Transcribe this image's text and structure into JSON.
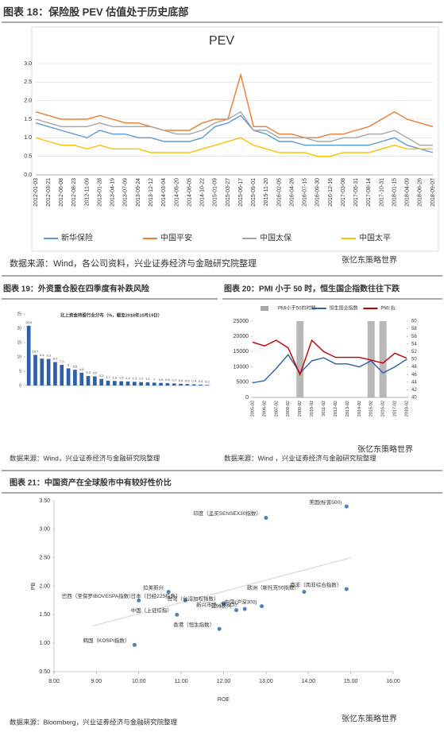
{
  "chart_data": [
    {
      "type": "line",
      "title": "图表 18：保险股 PEV 估值处于历史底部",
      "subtitle": "PEV",
      "categories": [
        "2012-01-03",
        "2012-03-21",
        "2012-06-08",
        "2012-08-23",
        "2012-11-09",
        "2013-01-28",
        "2013-04-19",
        "2013-07-09",
        "2013-09-24",
        "2013-12-12",
        "2014-03-04",
        "2014-05-20",
        "2014-08-05",
        "2014-10-22",
        "2015-01-09",
        "2015-03-27",
        "2015-06-17",
        "2015-09-01",
        "2015-11-20",
        "2016-02-05",
        "2016-04-26",
        "2016-07-15",
        "2016-09-30",
        "2016-12-16",
        "2017-03-08",
        "2017-05-31",
        "2017-08-14",
        "2017-10-31",
        "2018-01-15",
        "2018-04-09",
        "2018-06-26",
        "2018-09-07"
      ],
      "series": [
        {
          "name": "新华保险",
          "color": "#5b9bd5",
          "values": [
            1.4,
            1.3,
            1.2,
            1.1,
            1.0,
            1.2,
            1.1,
            1.1,
            1.0,
            1.0,
            0.9,
            0.9,
            0.9,
            1.0,
            1.3,
            1.4,
            1.6,
            1.2,
            1.1,
            0.9,
            0.9,
            0.8,
            0.8,
            0.8,
            0.8,
            0.8,
            0.8,
            0.9,
            1.0,
            0.8,
            0.7,
            0.6
          ]
        },
        {
          "name": "中国平安",
          "color": "#ed7d31",
          "values": [
            1.7,
            1.6,
            1.5,
            1.5,
            1.5,
            1.6,
            1.5,
            1.4,
            1.4,
            1.3,
            1.2,
            1.2,
            1.2,
            1.4,
            1.5,
            1.5,
            2.7,
            1.3,
            1.3,
            1.1,
            1.1,
            1.0,
            1.0,
            1.1,
            1.1,
            1.2,
            1.3,
            1.5,
            1.7,
            1.5,
            1.4,
            1.3
          ]
        },
        {
          "name": "中国太保",
          "color": "#a5a5a5",
          "values": [
            1.5,
            1.4,
            1.3,
            1.3,
            1.3,
            1.4,
            1.3,
            1.3,
            1.3,
            1.3,
            1.2,
            1.1,
            1.1,
            1.2,
            1.4,
            1.5,
            1.7,
            1.2,
            1.2,
            1.0,
            1.0,
            1.0,
            0.9,
            0.9,
            1.0,
            1.0,
            1.1,
            1.1,
            1.2,
            1.0,
            0.8,
            0.8
          ]
        },
        {
          "name": "中国太平",
          "color": "#ffc000",
          "values": [
            1.0,
            0.9,
            0.8,
            0.8,
            0.7,
            0.8,
            0.7,
            0.7,
            0.7,
            0.6,
            0.6,
            0.6,
            0.6,
            0.7,
            0.8,
            0.9,
            1.0,
            0.8,
            0.7,
            0.6,
            0.6,
            0.6,
            0.5,
            0.5,
            0.6,
            0.6,
            0.6,
            0.7,
            0.8,
            0.7,
            0.7,
            0.7
          ]
        }
      ],
      "ylim": [
        0,
        3
      ],
      "yticks": [
        {
          "value": 0,
          "label": "0.0"
        },
        0.5,
        {
          "value": 1,
          "label": "1.0"
        },
        1.5,
        {
          "value": 2,
          "label": "2.0"
        },
        2.5,
        {
          "value": 3,
          "label": "3.0"
        }
      ],
      "grid": true,
      "source": "数据来源：Wind，各公司资料，兴业证券经济与金融研究院整理",
      "watermark": "张忆东策略世界"
    },
    {
      "type": "bar",
      "title": "图表 19：外资重仓股在四季度有补跌风险",
      "subtitle": "北上资金持股行业分布（%，截至2018年10月19日）",
      "categories": [
        null,
        null,
        null,
        null,
        null,
        null,
        null,
        null,
        null,
        null,
        null,
        null,
        null,
        null,
        null,
        null,
        null,
        null,
        null,
        null,
        null,
        null,
        null,
        null,
        null,
        null,
        null,
        null
      ],
      "values": [
        20.9,
        10.7,
        9.4,
        9.3,
        8.2,
        7.2,
        6.0,
        5.5,
        4.5,
        3.3,
        3.2,
        2.3,
        1.7,
        1.6,
        1.5,
        1.4,
        1.3,
        1.2,
        1.1,
        1.0,
        0.9,
        0.8,
        0.7,
        0.6,
        0.5,
        0.4,
        0.3,
        0.2
      ],
      "color": "#2e5fa8",
      "ylim": [
        0,
        25
      ],
      "yticks": [
        0,
        5,
        10,
        15,
        20,
        25
      ],
      "grid": false,
      "source": "数据来源：Wind，兴业证券经济与金融研究院整理"
    },
    {
      "type": "line",
      "title": "图表 20：PMI 小于 50 时，恒生国企指数往往下跌",
      "categories": [
        "2005-02",
        "2006-02",
        "2007-02",
        "2008-02",
        "2009-02",
        "2010-02",
        "2011-02",
        "2012-02",
        "2013-02",
        "2014-02",
        "2015-02",
        "2016-02",
        "2017-02",
        "2018-02"
      ],
      "series": [
        {
          "name": "PMI小于50的时期",
          "type": "bar",
          "color": "#a6a6a6",
          "values": [
            null,
            null,
            null,
            null,
            25000,
            null,
            null,
            null,
            null,
            null,
            25000,
            25000,
            null,
            null
          ]
        },
        {
          "name": "恒生国企指数",
          "color": "#2e5fa8",
          "values": [
            4800,
            5500,
            9500,
            14000,
            8000,
            12000,
            13000,
            11000,
            11000,
            10000,
            12000,
            8000,
            10000,
            12500
          ]
        },
        {
          "name": "PMI:右",
          "color": "#c00000",
          "axis": "y2",
          "values": [
            54.5,
            53.5,
            55,
            53,
            46,
            55,
            52,
            50.5,
            50.5,
            50.5,
            49.8,
            49.0,
            51.6,
            50.3
          ]
        }
      ],
      "ylim": [
        0,
        25000
      ],
      "yticks": [
        0,
        5000,
        10000,
        15000,
        20000,
        25000
      ],
      "y2lim": [
        40,
        60
      ],
      "y2ticks": [
        40,
        42,
        44,
        46,
        48,
        50,
        52,
        54,
        56,
        58,
        60
      ],
      "grid": false,
      "source": "数据来源：Wind ，兴业证券经济与金融研究院整理",
      "watermark": "张忆东策略世界"
    },
    {
      "type": "scatter",
      "title": "图表 21：中国资产在全球股市中有较好性价比",
      "x_label": "ROE",
      "y_label": "PB",
      "points": [
        {
          "name": "美国(标普500)",
          "x": 14.9,
          "y": 3.4,
          "label_color": "#595959"
        },
        {
          "name": "印度（孟买SENSEX30指数）",
          "x": 13.0,
          "y": 3.2,
          "label_color": "#595959"
        },
        {
          "name": "欧洲（斯托克50指数）",
          "x": 13.9,
          "y": 1.9,
          "label_color": "#595959"
        },
        {
          "name": "南非（南非综合指数）",
          "x": 14.9,
          "y": 1.95,
          "label_color": "#595959"
        },
        {
          "name": "拉美新兴",
          "x": 10.7,
          "y": 1.9,
          "label_color": "#595959"
        },
        {
          "name": "巴西（圣保罗IBOVESPA指数）",
          "x": 10.0,
          "y": 1.75,
          "label_color": "#595959"
        },
        {
          "name": "日本（日经225指数）",
          "x": 11.1,
          "y": 1.75,
          "label_color": "#595959"
        },
        {
          "name": "台湾（台湾加权指数）",
          "x": 12.0,
          "y": 1.7,
          "label_color": "#595959"
        },
        {
          "name": "中国(沪深300)",
          "x": 12.9,
          "y": 1.65,
          "label_color": "#c00000"
        },
        {
          "name": "亚洲新兴",
          "x": 12.3,
          "y": 1.58,
          "label_color": "#595959"
        },
        {
          "name": "新兴市场（MSCI）",
          "x": 12.5,
          "y": 1.6,
          "label_color": "#595959"
        },
        {
          "name": "中国（上证综指）",
          "x": 10.9,
          "y": 1.5,
          "label_color": "#c00000"
        },
        {
          "name": "香港（恒生指数）",
          "x": 11.9,
          "y": 1.25,
          "label_color": "#c00000"
        },
        {
          "name": "韩国（KOSPI指数）",
          "x": 9.9,
          "y": 0.97,
          "label_color": "#595959"
        }
      ],
      "color": "#4f81bd",
      "trendline": {
        "x": [
          8.9,
          15.0
        ],
        "y": [
          1.3,
          2.5
        ],
        "color": "#d9d9d9"
      },
      "xlim": [
        8,
        16
      ],
      "xticks": [
        {
          "value": 8,
          "label": "8.00"
        },
        {
          "value": 9,
          "label": "9.00"
        },
        {
          "value": 10,
          "label": "10.00"
        },
        {
          "value": 11,
          "label": "11.00"
        },
        {
          "value": 12,
          "label": "12.00"
        },
        {
          "value": 13,
          "label": "13.00"
        },
        {
          "value": 14,
          "label": "14.00"
        },
        {
          "value": 15,
          "label": "15.00"
        },
        {
          "value": 16,
          "label": "16.00"
        }
      ],
      "ylim": [
        0.5,
        3.5
      ],
      "yticks": [
        {
          "value": 0.5,
          "label": "0.50"
        },
        {
          "value": 1,
          "label": "1.00"
        },
        {
          "value": 1.5,
          "label": "1.50"
        },
        {
          "value": 2,
          "label": "2.00"
        },
        {
          "value": 2.5,
          "label": "2.50"
        },
        {
          "value": 3,
          "label": "3.00"
        },
        {
          "value": 3.5,
          "label": "3.50"
        }
      ],
      "source": "数据来源：Bloomberg，兴业证券经济与金融研究院整理",
      "watermark": "张忆东策略世界"
    }
  ]
}
